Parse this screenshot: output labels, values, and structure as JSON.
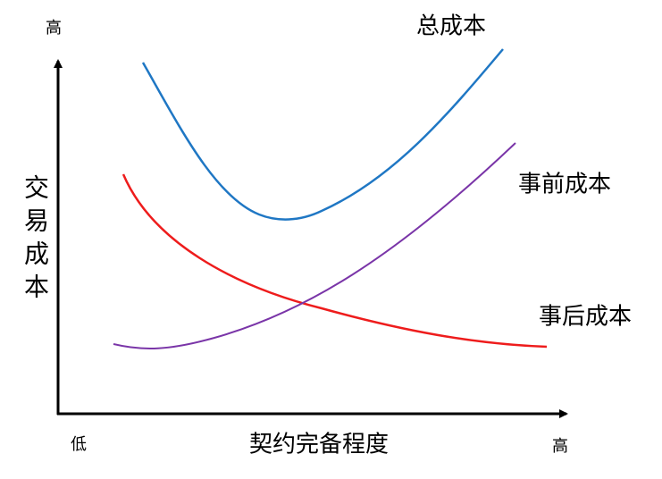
{
  "y_axis": {
    "label": "交易成本",
    "high": "高"
  },
  "x_axis": {
    "label": "契约完备程度",
    "low": "低",
    "high": "高"
  },
  "curves": {
    "total": "总成本",
    "ex_ante": "事前成本",
    "ex_post": "事后成本"
  }
}
